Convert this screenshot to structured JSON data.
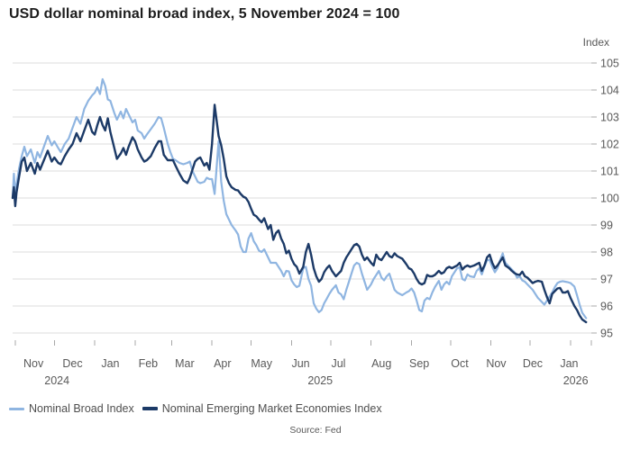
{
  "title": "USD dollar nominal broad index, 5 November 2024 = 100",
  "source": "Source: Fed",
  "colors": {
    "broad": "#8FB5E1",
    "em": "#1C3A67",
    "grid": "#dcdcdc",
    "tick": "#a8a8a8",
    "axis_text": "#595959",
    "title_text": "#1c1c1c"
  },
  "chart_data": {
    "type": "line",
    "title": "USD dollar nominal broad index, 5 November 2024 = 100",
    "y_axis": {
      "unit_label": "Index",
      "ylim": [
        95,
        105
      ],
      "ticks": [
        95,
        96,
        97,
        98,
        99,
        100,
        101,
        102,
        103,
        104,
        105
      ],
      "grid": true,
      "labels_side": "right"
    },
    "x_axis": {
      "domain_days": [
        0,
        444
      ],
      "tick_days": [
        2,
        32,
        63,
        94,
        122,
        153,
        183,
        214,
        244,
        275,
        306,
        336,
        367,
        397,
        428,
        444
      ],
      "month_labels": [
        {
          "label": "Nov",
          "day": 16
        },
        {
          "label": "Dec",
          "day": 46
        },
        {
          "label": "Jan",
          "day": 75
        },
        {
          "label": "Feb",
          "day": 104
        },
        {
          "label": "Mar",
          "day": 132
        },
        {
          "label": "Apr",
          "day": 161
        },
        {
          "label": "May",
          "day": 191
        },
        {
          "label": "Jun",
          "day": 221
        },
        {
          "label": "Jul",
          "day": 250
        },
        {
          "label": "Aug",
          "day": 283
        },
        {
          "label": "Sep",
          "day": 312
        },
        {
          "label": "Oct",
          "day": 343
        },
        {
          "label": "Nov",
          "day": 371
        },
        {
          "label": "Dec",
          "day": 399
        },
        {
          "label": "Jan",
          "day": 427
        }
      ],
      "year_labels": [
        {
          "label": "2024",
          "day": 34
        },
        {
          "label": "2025",
          "day": 236
        },
        {
          "label": "2026",
          "day": 432
        }
      ]
    },
    "legend_position": "bottom-left",
    "x_days": [
      0,
      1,
      2,
      3,
      5,
      7,
      9,
      11,
      14,
      17,
      19,
      21,
      24,
      27,
      30,
      32,
      35,
      37,
      40,
      43,
      46,
      49,
      52,
      55,
      58,
      61,
      63,
      65,
      67,
      69,
      71,
      73,
      75,
      78,
      80,
      83,
      85,
      87,
      89,
      92,
      94,
      96,
      99,
      101,
      103,
      106,
      109,
      112,
      114,
      116,
      119,
      121,
      123,
      125,
      128,
      131,
      134,
      136,
      138,
      140,
      142,
      144,
      147,
      149,
      151,
      153,
      155,
      158,
      160,
      162,
      164,
      166,
      168,
      171,
      173,
      175,
      177,
      179,
      181,
      183,
      185,
      187,
      189,
      191,
      193,
      196,
      198,
      200,
      202,
      204,
      206,
      208,
      210,
      212,
      214,
      216,
      218,
      220,
      223,
      225,
      227,
      229,
      231,
      233,
      235,
      237,
      239,
      241,
      243,
      245,
      248,
      250,
      252,
      254,
      256,
      258,
      260,
      262,
      264,
      266,
      268,
      270,
      272,
      275,
      277,
      279,
      281,
      283,
      285,
      287,
      289,
      291,
      293,
      295,
      297,
      299,
      302,
      304,
      306,
      308,
      310,
      312,
      314,
      316,
      318,
      320,
      322,
      324,
      327,
      329,
      331,
      333,
      335,
      337,
      339,
      341,
      343,
      345,
      347,
      349,
      351,
      354,
      356,
      358,
      360,
      362,
      364,
      366,
      368,
      370,
      372,
      374,
      376,
      378,
      381,
      383,
      385,
      387,
      389,
      391,
      393,
      395,
      397,
      399,
      401,
      403,
      406,
      408,
      410,
      412,
      414,
      416,
      418,
      420,
      422,
      424,
      426,
      428,
      431,
      433,
      435,
      437,
      440
    ],
    "series": [
      {
        "name": "Nominal Broad Index",
        "color": "#8FB5E1",
        "values": [
          100.0,
          100.9,
          100.15,
          100.5,
          101.1,
          101.55,
          101.9,
          101.55,
          101.8,
          101.3,
          101.7,
          101.5,
          101.9,
          102.3,
          101.95,
          102.1,
          101.85,
          101.7,
          102.0,
          102.2,
          102.6,
          103.0,
          102.75,
          103.3,
          103.6,
          103.8,
          103.9,
          104.1,
          103.85,
          104.4,
          104.15,
          103.65,
          103.6,
          103.15,
          102.9,
          103.2,
          102.95,
          103.3,
          103.1,
          102.8,
          102.9,
          102.5,
          102.4,
          102.2,
          102.35,
          102.55,
          102.75,
          103.0,
          102.95,
          102.6,
          102.0,
          101.7,
          101.45,
          101.4,
          101.3,
          101.25,
          101.3,
          101.35,
          101.0,
          100.8,
          100.6,
          100.55,
          100.6,
          100.75,
          100.7,
          100.7,
          100.15,
          102.1,
          100.6,
          99.9,
          99.4,
          99.2,
          99.0,
          98.8,
          98.65,
          98.2,
          98.0,
          98.0,
          98.5,
          98.7,
          98.4,
          98.25,
          98.05,
          98.0,
          98.1,
          97.8,
          97.6,
          97.6,
          97.6,
          97.45,
          97.3,
          97.1,
          97.3,
          97.28,
          96.95,
          96.8,
          96.7,
          96.75,
          97.4,
          97.45,
          97.0,
          96.75,
          96.1,
          95.9,
          95.77,
          95.85,
          96.1,
          96.27,
          96.45,
          96.6,
          96.77,
          96.5,
          96.43,
          96.25,
          96.6,
          96.9,
          97.2,
          97.5,
          97.6,
          97.55,
          97.2,
          96.9,
          96.6,
          96.8,
          97.0,
          97.15,
          97.3,
          97.05,
          96.95,
          97.1,
          97.2,
          96.9,
          96.6,
          96.5,
          96.45,
          96.4,
          96.5,
          96.55,
          96.65,
          96.5,
          96.2,
          95.85,
          95.8,
          96.2,
          96.3,
          96.25,
          96.5,
          96.7,
          96.93,
          96.6,
          96.8,
          96.9,
          96.8,
          97.1,
          97.25,
          97.4,
          97.43,
          97.0,
          96.95,
          97.17,
          97.1,
          97.07,
          97.3,
          97.4,
          97.17,
          97.45,
          97.7,
          97.7,
          97.45,
          97.25,
          97.4,
          97.7,
          97.95,
          97.6,
          97.45,
          97.35,
          97.25,
          97.05,
          97.1,
          96.95,
          96.9,
          96.8,
          96.7,
          96.6,
          96.45,
          96.3,
          96.15,
          96.05,
          96.2,
          96.35,
          96.5,
          96.7,
          96.85,
          96.9,
          96.92,
          96.9,
          96.88,
          96.85,
          96.72,
          96.4,
          96.05,
          95.75,
          95.55
        ]
      },
      {
        "name": "Nominal Emerging Market Economies Index",
        "color": "#1C3A67",
        "values": [
          100.0,
          100.4,
          99.7,
          100.2,
          100.8,
          101.35,
          101.5,
          101.0,
          101.3,
          100.9,
          101.3,
          101.05,
          101.4,
          101.75,
          101.35,
          101.5,
          101.3,
          101.25,
          101.55,
          101.8,
          102.0,
          102.4,
          102.1,
          102.5,
          102.9,
          102.45,
          102.35,
          102.7,
          103.0,
          102.7,
          102.5,
          102.95,
          102.45,
          101.85,
          101.45,
          101.65,
          101.85,
          101.6,
          101.9,
          102.25,
          102.1,
          101.8,
          101.5,
          101.35,
          101.4,
          101.55,
          101.85,
          102.1,
          102.1,
          101.6,
          101.4,
          101.4,
          101.4,
          101.2,
          100.9,
          100.65,
          100.55,
          100.75,
          101.05,
          101.35,
          101.45,
          101.5,
          101.2,
          101.3,
          101.05,
          102.0,
          103.45,
          102.3,
          101.95,
          101.45,
          100.8,
          100.55,
          100.4,
          100.3,
          100.28,
          100.15,
          100.05,
          100.0,
          99.85,
          99.6,
          99.38,
          99.32,
          99.2,
          99.1,
          99.25,
          98.85,
          99.0,
          98.45,
          98.7,
          98.8,
          98.5,
          98.3,
          97.95,
          98.05,
          97.75,
          97.55,
          97.45,
          97.2,
          97.45,
          98.0,
          98.3,
          97.9,
          97.4,
          97.1,
          96.9,
          97.0,
          97.25,
          97.4,
          97.5,
          97.3,
          97.1,
          97.2,
          97.3,
          97.6,
          97.8,
          97.95,
          98.1,
          98.25,
          98.3,
          98.2,
          97.9,
          97.7,
          97.8,
          97.6,
          97.5,
          97.9,
          97.75,
          97.7,
          97.85,
          98.0,
          97.85,
          97.8,
          97.95,
          97.85,
          97.8,
          97.75,
          97.55,
          97.4,
          97.35,
          97.2,
          97.0,
          96.85,
          96.8,
          96.85,
          97.15,
          97.1,
          97.1,
          97.15,
          97.3,
          97.2,
          97.25,
          97.4,
          97.45,
          97.4,
          97.45,
          97.5,
          97.6,
          97.35,
          97.45,
          97.5,
          97.45,
          97.5,
          97.55,
          97.6,
          97.3,
          97.5,
          97.8,
          97.9,
          97.6,
          97.4,
          97.5,
          97.65,
          97.8,
          97.5,
          97.4,
          97.3,
          97.22,
          97.17,
          97.15,
          97.27,
          97.1,
          97.05,
          96.95,
          96.85,
          96.9,
          96.93,
          96.9,
          96.6,
          96.33,
          96.1,
          96.45,
          96.55,
          96.65,
          96.67,
          96.5,
          96.5,
          96.55,
          96.3,
          96.0,
          95.85,
          95.65,
          95.5,
          95.4
        ]
      }
    ]
  },
  "legend": {
    "items": [
      {
        "label": "Nominal Broad Index",
        "color": "#8FB5E1"
      },
      {
        "label": "Nominal Emerging Market Economies Index",
        "color": "#1C3A67"
      }
    ]
  }
}
